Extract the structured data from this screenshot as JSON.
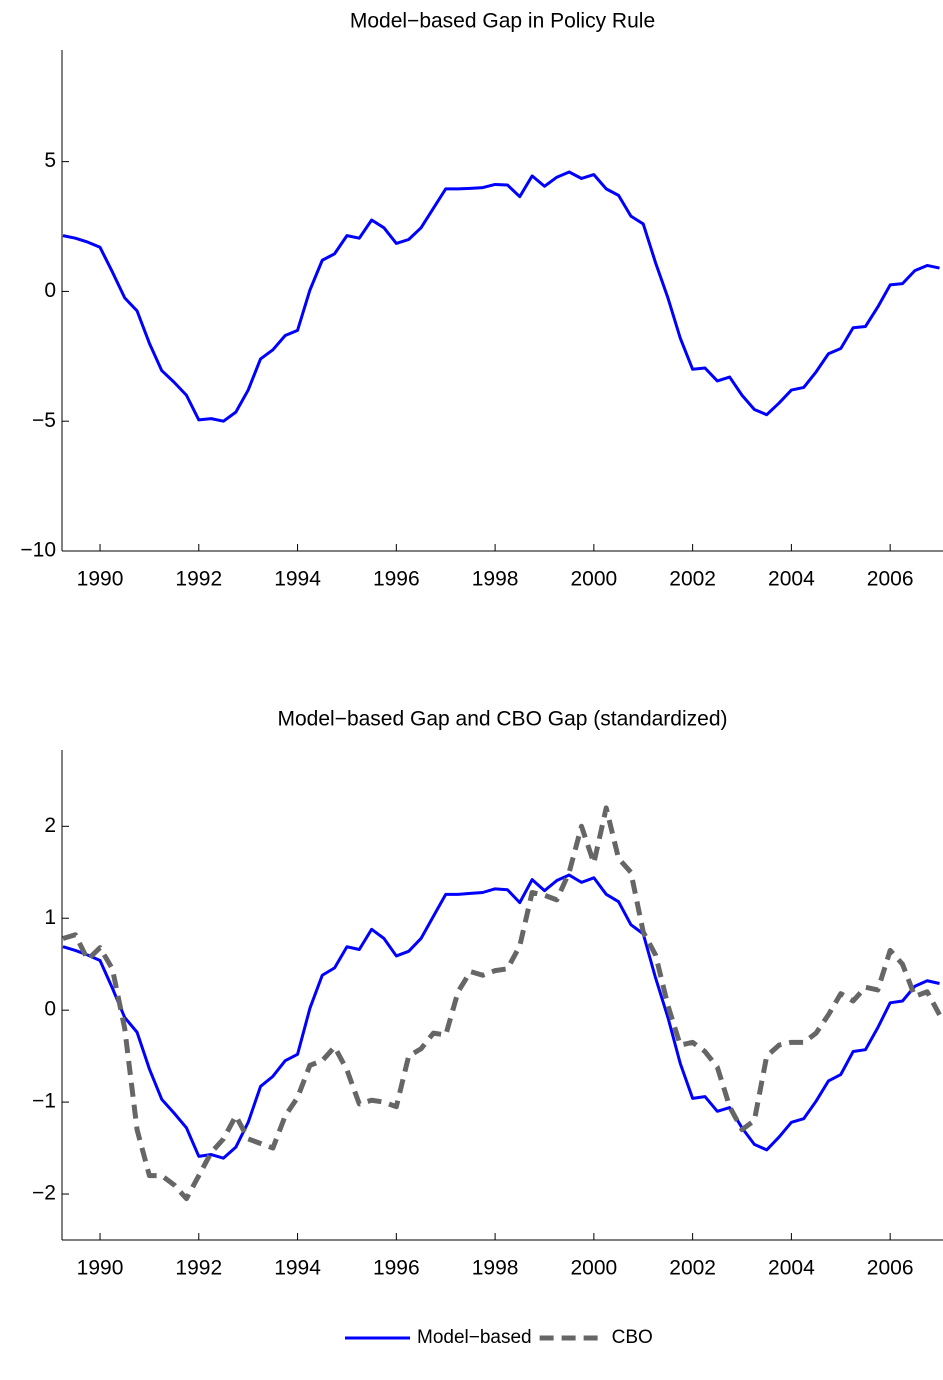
{
  "chart_data": [
    {
      "type": "line",
      "title": "Model−based Gap in Policy Rule",
      "x": [
        1989.25,
        1989.5,
        1989.75,
        1990,
        1990.25,
        1990.5,
        1990.75,
        1991,
        1991.25,
        1991.5,
        1991.75,
        1992,
        1992.25,
        1992.5,
        1992.75,
        1993,
        1993.25,
        1993.5,
        1993.75,
        1994,
        1994.25,
        1994.5,
        1994.75,
        1995,
        1995.25,
        1995.5,
        1995.75,
        1996,
        1996.25,
        1996.5,
        1996.75,
        1997,
        1997.25,
        1997.5,
        1997.75,
        1998,
        1998.25,
        1998.5,
        1998.75,
        1999,
        1999.25,
        1999.5,
        1999.75,
        2000,
        2000.25,
        2000.5,
        2000.75,
        2001,
        2001.25,
        2001.5,
        2001.75,
        2002,
        2002.25,
        2002.5,
        2002.75,
        2003,
        2003.25,
        2003.5,
        2003.75,
        2004,
        2004.25,
        2004.5,
        2004.75,
        2005,
        2005.25,
        2005.5,
        2005.75,
        2006,
        2006.25,
        2006.5,
        2006.75,
        2007
      ],
      "series": [
        {
          "name": "Model−based",
          "color": "#0000ff",
          "dash": false,
          "values": [
            2.15,
            2.05,
            1.9,
            1.7,
            0.75,
            -0.25,
            -0.75,
            -2.0,
            -3.05,
            -3.5,
            -4.0,
            -4.95,
            -4.9,
            -5.0,
            -4.65,
            -3.8,
            -2.6,
            -2.25,
            -1.7,
            -1.5,
            0.05,
            1.2,
            1.45,
            2.15,
            2.05,
            2.75,
            2.45,
            1.85,
            2.0,
            2.45,
            3.2,
            3.95,
            3.95,
            3.97,
            4.0,
            4.12,
            4.1,
            3.65,
            4.45,
            4.05,
            4.4,
            4.6,
            4.35,
            4.5,
            3.95,
            3.7,
            2.9,
            2.6,
            1.1,
            -0.25,
            -1.8,
            -3.0,
            -2.95,
            -3.45,
            -3.3,
            -4.0,
            -4.55,
            -4.75,
            -4.3,
            -3.8,
            -3.7,
            -3.1,
            -2.4,
            -2.2,
            -1.4,
            -1.35,
            -0.6,
            0.25,
            0.3,
            0.8,
            1.0,
            0.9
          ]
        }
      ],
      "xlim": [
        1989.23,
        2007.07
      ],
      "xticks": [
        1990,
        1992,
        1994,
        1996,
        1998,
        2000,
        2002,
        2004,
        2006
      ],
      "ylim": [
        -10,
        9.3
      ],
      "yticks": [
        {
          "value": -10,
          "label": "−10"
        },
        {
          "value": -5,
          "label": "−5"
        },
        0,
        5
      ]
    },
    {
      "type": "line",
      "title": "Model−based Gap and CBO Gap (standardized)",
      "x": [
        1989.25,
        1989.5,
        1989.75,
        1990,
        1990.25,
        1990.5,
        1990.75,
        1991,
        1991.25,
        1991.5,
        1991.75,
        1992,
        1992.25,
        1992.5,
        1992.75,
        1993,
        1993.25,
        1993.5,
        1993.75,
        1994,
        1994.25,
        1994.5,
        1994.75,
        1995,
        1995.25,
        1995.5,
        1995.75,
        1996,
        1996.25,
        1996.5,
        1996.75,
        1997,
        1997.25,
        1997.5,
        1997.75,
        1998,
        1998.25,
        1998.5,
        1998.75,
        1999,
        1999.25,
        1999.5,
        1999.75,
        2000,
        2000.25,
        2000.5,
        2000.75,
        2001,
        2001.25,
        2001.5,
        2001.75,
        2002,
        2002.25,
        2002.5,
        2002.75,
        2003,
        2003.25,
        2003.5,
        2003.75,
        2004,
        2004.25,
        2004.5,
        2004.75,
        2005,
        2005.25,
        2005.5,
        2005.75,
        2006,
        2006.25,
        2006.5,
        2006.75,
        2007
      ],
      "series": [
        {
          "name": "Model−based",
          "color": "#0000ff",
          "dash": false,
          "values": [
            0.69,
            0.65,
            0.6,
            0.54,
            0.24,
            -0.08,
            -0.24,
            -0.64,
            -0.97,
            -1.12,
            -1.28,
            -1.59,
            -1.57,
            -1.61,
            -1.49,
            -1.22,
            -0.83,
            -0.72,
            -0.55,
            -0.48,
            0.02,
            0.38,
            0.46,
            0.69,
            0.66,
            0.88,
            0.78,
            0.59,
            0.64,
            0.78,
            1.02,
            1.26,
            1.26,
            1.27,
            1.28,
            1.32,
            1.31,
            1.17,
            1.42,
            1.3,
            1.41,
            1.47,
            1.39,
            1.44,
            1.26,
            1.18,
            0.93,
            0.83,
            0.35,
            -0.08,
            -0.58,
            -0.96,
            -0.94,
            -1.1,
            -1.06,
            -1.28,
            -1.46,
            -1.52,
            -1.38,
            -1.22,
            -1.18,
            -0.99,
            -0.77,
            -0.7,
            -0.45,
            -0.43,
            -0.19,
            0.08,
            0.1,
            0.26,
            0.32,
            0.29
          ]
        },
        {
          "name": "CBO",
          "color": "#666666",
          "dash": true,
          "values": [
            0.78,
            0.82,
            0.55,
            0.68,
            0.45,
            -0.2,
            -1.3,
            -1.8,
            -1.8,
            -1.9,
            -2.05,
            -1.8,
            -1.55,
            -1.4,
            -1.15,
            -1.4,
            -1.45,
            -1.5,
            -1.15,
            -0.95,
            -0.6,
            -0.55,
            -0.4,
            -0.65,
            -1.02,
            -0.98,
            -1.0,
            -1.05,
            -0.5,
            -0.42,
            -0.25,
            -0.27,
            0.2,
            0.42,
            0.38,
            0.43,
            0.45,
            0.7,
            1.28,
            1.25,
            1.2,
            1.5,
            2.0,
            1.6,
            2.2,
            1.65,
            1.5,
            0.85,
            0.6,
            0.05,
            -0.38,
            -0.35,
            -0.45,
            -0.62,
            -1.05,
            -1.3,
            -1.2,
            -0.5,
            -0.38,
            -0.35,
            -0.35,
            -0.25,
            -0.05,
            0.18,
            0.1,
            0.25,
            0.22,
            0.65,
            0.5,
            0.15,
            0.2,
            -0.05
          ]
        }
      ],
      "xlim": [
        1989.23,
        2007.07
      ],
      "xticks": [
        1990,
        1992,
        1994,
        1996,
        1998,
        2000,
        2002,
        2004,
        2006
      ],
      "ylim": [
        -2.5,
        2.83
      ],
      "yticks": [
        {
          "value": -2,
          "label": "−2"
        },
        {
          "value": -1,
          "label": "−1"
        },
        0,
        1,
        2
      ],
      "legend": "bottom"
    }
  ]
}
